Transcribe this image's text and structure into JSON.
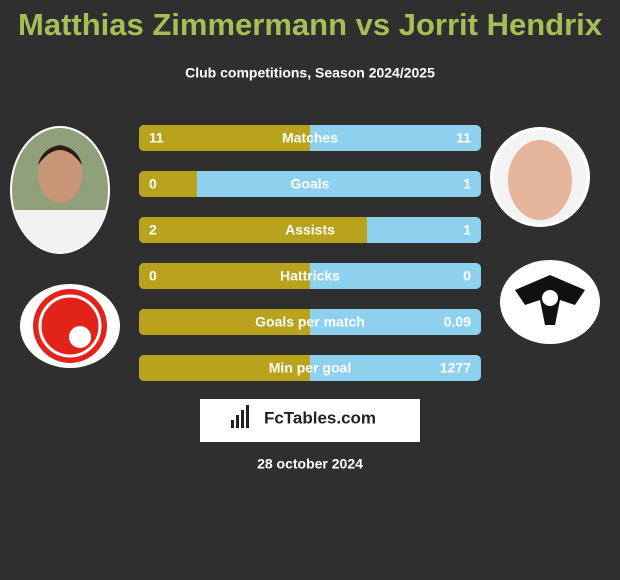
{
  "header": {
    "title": "Matthias Zimmermann vs Jorrit Hendrix",
    "subtitle": "Club competitions, Season 2024/2025"
  },
  "rows": [
    {
      "label": "Matches",
      "left": 11,
      "right": 11
    },
    {
      "label": "Goals",
      "left": 0,
      "right": 1
    },
    {
      "label": "Assists",
      "left": 2,
      "right": 1
    },
    {
      "label": "Hattricks",
      "left": 0,
      "right": 0
    },
    {
      "label": "Goals per match",
      "left": null,
      "right": 0.09
    },
    {
      "label": "Min per goal",
      "left": null,
      "right": 1277
    }
  ],
  "footer": {
    "brand": "FcTables.com",
    "date": "28 october 2024"
  }
}
